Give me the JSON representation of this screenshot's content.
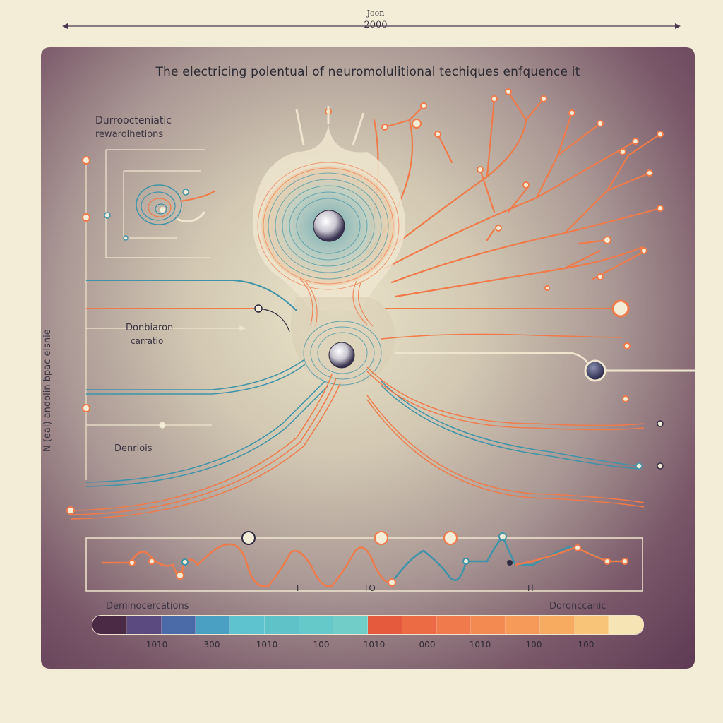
{
  "top_scale": {
    "label_top": "Joon",
    "label_bottom": "2000"
  },
  "title": "The electricing polentual of neuromolulitional techiques enfquence it",
  "labels": {
    "upper_left_line1": "Durroocteniatic",
    "upper_left_line2": "rewarolhetions",
    "middle_left_line1": "Donbiaron",
    "middle_left_line2": "carratio",
    "lower_left": "Denriois",
    "vertical_axis": "N (eai) andolin bpac elsnie",
    "timeline_t1": "T",
    "timeline_to": "TO",
    "timeline_end": "Tl",
    "legend_left": "Deminocercations",
    "legend_right": "Doronccanic"
  },
  "scale_ticks": [
    "1010",
    "300",
    "1010",
    "100",
    "1010",
    "000",
    "1010",
    "100",
    "100"
  ],
  "colors": {
    "panel_dark": "#5e3a54",
    "orange": "#f07a4a",
    "teal": "#3f93a8",
    "cream": "#f3ecd6",
    "legend": [
      "#4a2a45",
      "#5b4a7f",
      "#4b6aa8",
      "#4aa0c3",
      "#5ec3cf",
      "#5fc2c8",
      "#66c9c9",
      "#70cdc8",
      "#e55a3c",
      "#ec6a44",
      "#f07a4c",
      "#f38a52",
      "#f59a58",
      "#f7ab60",
      "#f8c477",
      "#f6e4b5"
    ]
  }
}
